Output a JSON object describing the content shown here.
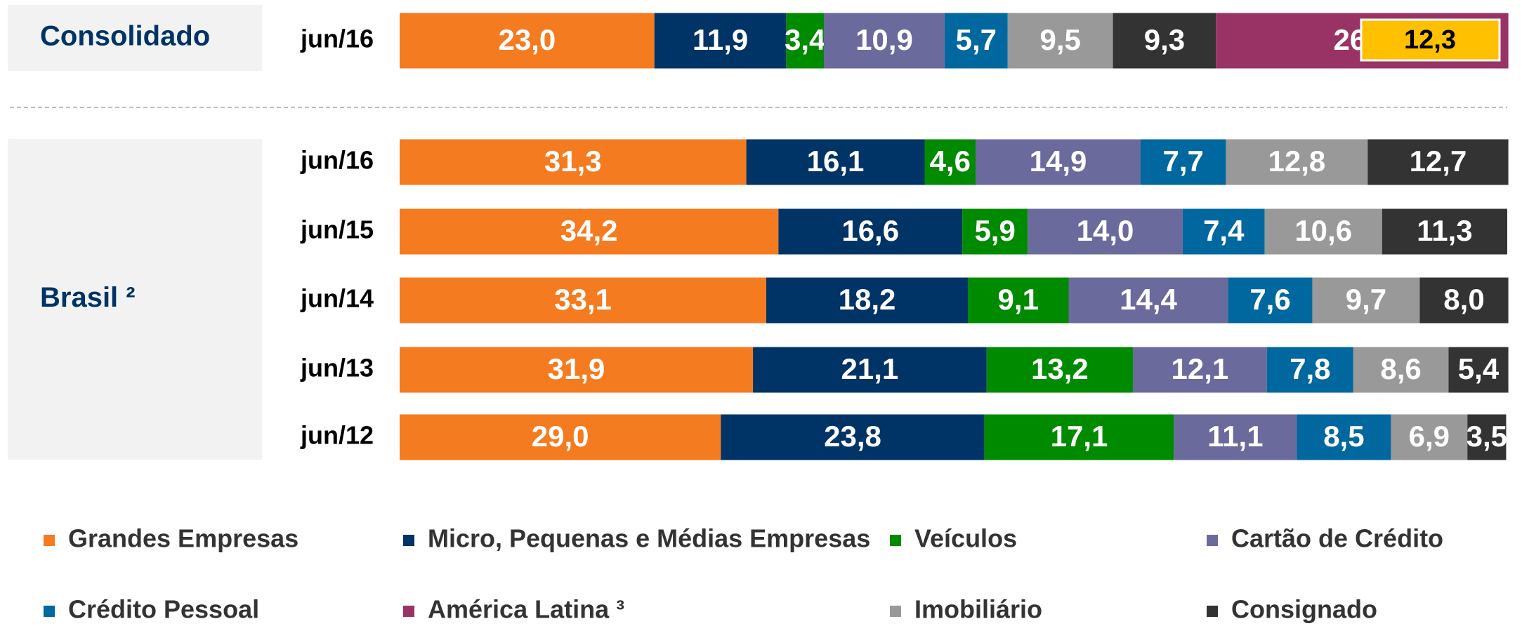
{
  "chart_data": [
    {
      "type": "bar",
      "orientation": "horizontal",
      "stacked": true,
      "group": "Consolidado",
      "categories": [
        "jun/16"
      ],
      "xlim": [
        0,
        100
      ],
      "series": [
        {
          "name": "Grandes Empresas",
          "color": "#f47b20",
          "values": [
            23.0
          ],
          "value_labels": [
            "23,0"
          ]
        },
        {
          "name": "Micro, Pequenas e Médias Empresas",
          "color": "#003366",
          "values": [
            11.9
          ],
          "value_labels": [
            "11,9"
          ]
        },
        {
          "name": "Veículos",
          "color": "#008a00",
          "values": [
            3.4
          ],
          "value_labels": [
            "3,4"
          ]
        },
        {
          "name": "Cartão de Crédito",
          "color": "#6a6a9c",
          "values": [
            10.9
          ],
          "value_labels": [
            "10,9"
          ]
        },
        {
          "name": "Crédito Pessoal",
          "color": "#00689e",
          "values": [
            5.7
          ],
          "value_labels": [
            "5,7"
          ]
        },
        {
          "name": "Imobiliário",
          "color": "#999999",
          "values": [
            9.5
          ],
          "value_labels": [
            "9,5"
          ]
        },
        {
          "name": "Consignado",
          "color": "#333333",
          "values": [
            9.3
          ],
          "value_labels": [
            "9,3"
          ]
        },
        {
          "name": "América Latina ³",
          "color": "#993366",
          "values": [
            26.4
          ],
          "value_labels": [
            "26,4"
          ]
        }
      ],
      "annotation": {
        "value": 12.3,
        "label": "12,3",
        "color": "#ffc000"
      }
    },
    {
      "type": "bar",
      "orientation": "horizontal",
      "stacked": true,
      "group": "Brasil ²",
      "categories": [
        "jun/16",
        "jun/15",
        "jun/14",
        "jun/13",
        "jun/12"
      ],
      "xlim": [
        0,
        100
      ],
      "series": [
        {
          "color": "#f47b20",
          "values": [
            31.3,
            34.2,
            33.1,
            31.9,
            29.0
          ],
          "value_labels": [
            "31,3",
            "34,2",
            "33,1",
            "31,9",
            "29,0"
          ]
        },
        {
          "color": "#003366",
          "values": [
            16.1,
            16.6,
            18.2,
            21.1,
            23.8
          ],
          "value_labels": [
            "16,1",
            "16,6",
            "18,2",
            "21,1",
            "23,8"
          ]
        },
        {
          "color": "#008a00",
          "values": [
            4.6,
            5.9,
            9.1,
            13.2,
            17.1
          ],
          "value_labels": [
            "4,6",
            "5,9",
            "9,1",
            "13,2",
            "17,1"
          ]
        },
        {
          "color": "#6a6a9c",
          "values": [
            14.9,
            14.0,
            14.4,
            12.1,
            11.1
          ],
          "value_labels": [
            "14,9",
            "14,0",
            "14,4",
            "12,1",
            "11,1"
          ]
        },
        {
          "color": "#00689e",
          "values": [
            7.7,
            7.4,
            7.6,
            7.8,
            8.5
          ],
          "value_labels": [
            "7,7",
            "7,4",
            "7,6",
            "7,8",
            "8,5"
          ]
        },
        {
          "color": "#999999",
          "values": [
            12.8,
            10.6,
            9.7,
            8.6,
            6.9
          ],
          "value_labels": [
            "12,8",
            "10,6",
            "9,7",
            "8,6",
            "6,9"
          ]
        },
        {
          "color": "#333333",
          "values": [
            12.7,
            11.3,
            8.0,
            5.4,
            3.5
          ],
          "value_labels": [
            "12,7",
            "11,3",
            "8,0",
            "5,4",
            "3,5"
          ]
        }
      ]
    }
  ]
}
